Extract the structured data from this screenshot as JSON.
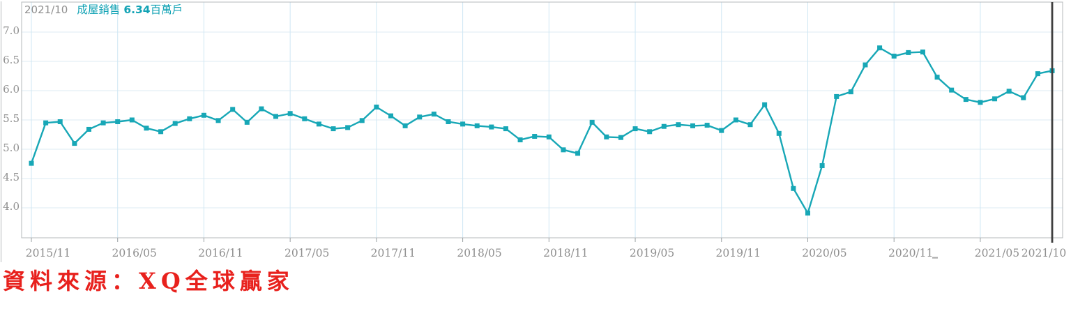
{
  "tooltip": {
    "date": "2021/10",
    "series_label": "成屋銷售",
    "value": "6.34",
    "unit": "百萬戶"
  },
  "source_label": "資料來源：XQ全球贏家",
  "colors": {
    "background": "#ffffff",
    "line": "#17a7b6",
    "value_text": "#13a3b5",
    "muted_text": "#8f8f8f",
    "grid_h": "#dcebf3",
    "grid_v": "#cfe7f4",
    "border": "#b4b8bb",
    "tick": "#9aa0a3",
    "crosshair": "#3f3f3f",
    "source_red": "#e8211d",
    "artifact": "#aaaaaa"
  },
  "chart_data": {
    "type": "line",
    "title": "成屋銷售",
    "series_name": "成屋銷售",
    "unit": "百萬戶",
    "legend": "none",
    "grid": true,
    "marker": "square",
    "ylim": [
      3.4,
      7.5
    ],
    "yticks": [
      7.0,
      6.5,
      6.0,
      5.5,
      5.0,
      4.5,
      4.0
    ],
    "ytick_labels": [
      "7.0",
      "6.5",
      "6.0",
      "5.5",
      "5.0",
      "4.5",
      "4.0"
    ],
    "xtick_indices": [
      0,
      6,
      12,
      18,
      24,
      30,
      36,
      42,
      48,
      54,
      60,
      66,
      71
    ],
    "xtick_labels": [
      "2015/11",
      "2016/05",
      "2016/11",
      "2017/05",
      "2017/11",
      "2018/05",
      "2018/11",
      "2019/05",
      "2019/11",
      "2020/05",
      "2020/11",
      "2021/05",
      "2021/10"
    ],
    "x": [
      "2015/11",
      "2015/12",
      "2016/01",
      "2016/02",
      "2016/03",
      "2016/04",
      "2016/05",
      "2016/06",
      "2016/07",
      "2016/08",
      "2016/09",
      "2016/10",
      "2016/11",
      "2016/12",
      "2017/01",
      "2017/02",
      "2017/03",
      "2017/04",
      "2017/05",
      "2017/06",
      "2017/07",
      "2017/08",
      "2017/09",
      "2017/10",
      "2017/11",
      "2017/12",
      "2018/01",
      "2018/02",
      "2018/03",
      "2018/04",
      "2018/05",
      "2018/06",
      "2018/07",
      "2018/08",
      "2018/09",
      "2018/10",
      "2018/11",
      "2018/12",
      "2019/01",
      "2019/02",
      "2019/03",
      "2019/04",
      "2019/05",
      "2019/06",
      "2019/07",
      "2019/08",
      "2019/09",
      "2019/10",
      "2019/11",
      "2019/12",
      "2020/01",
      "2020/02",
      "2020/03",
      "2020/04",
      "2020/05",
      "2020/06",
      "2020/07",
      "2020/08",
      "2020/09",
      "2020/10",
      "2020/11",
      "2020/12",
      "2021/01",
      "2021/02",
      "2021/03",
      "2021/04",
      "2021/05",
      "2021/06",
      "2021/07",
      "2021/08",
      "2021/09",
      "2021/10"
    ],
    "values": [
      4.76,
      5.45,
      5.47,
      5.1,
      5.34,
      5.45,
      5.47,
      5.5,
      5.36,
      5.3,
      5.44,
      5.52,
      5.58,
      5.49,
      5.68,
      5.46,
      5.69,
      5.56,
      5.61,
      5.52,
      5.43,
      5.35,
      5.37,
      5.49,
      5.72,
      5.57,
      5.4,
      5.55,
      5.6,
      5.47,
      5.43,
      5.4,
      5.38,
      5.35,
      5.16,
      5.22,
      5.21,
      4.99,
      4.93,
      5.46,
      5.21,
      5.2,
      5.35,
      5.3,
      5.39,
      5.42,
      5.4,
      5.41,
      5.32,
      5.5,
      5.42,
      5.76,
      5.27,
      4.33,
      3.91,
      4.72,
      5.9,
      5.98,
      6.44,
      6.73,
      6.59,
      6.65,
      6.66,
      6.23,
      6.01,
      5.85,
      5.8,
      5.86,
      5.99,
      5.88,
      6.29,
      6.34
    ],
    "selected_index": 71,
    "selected_label": "2021/10",
    "selected_value": 6.34
  }
}
